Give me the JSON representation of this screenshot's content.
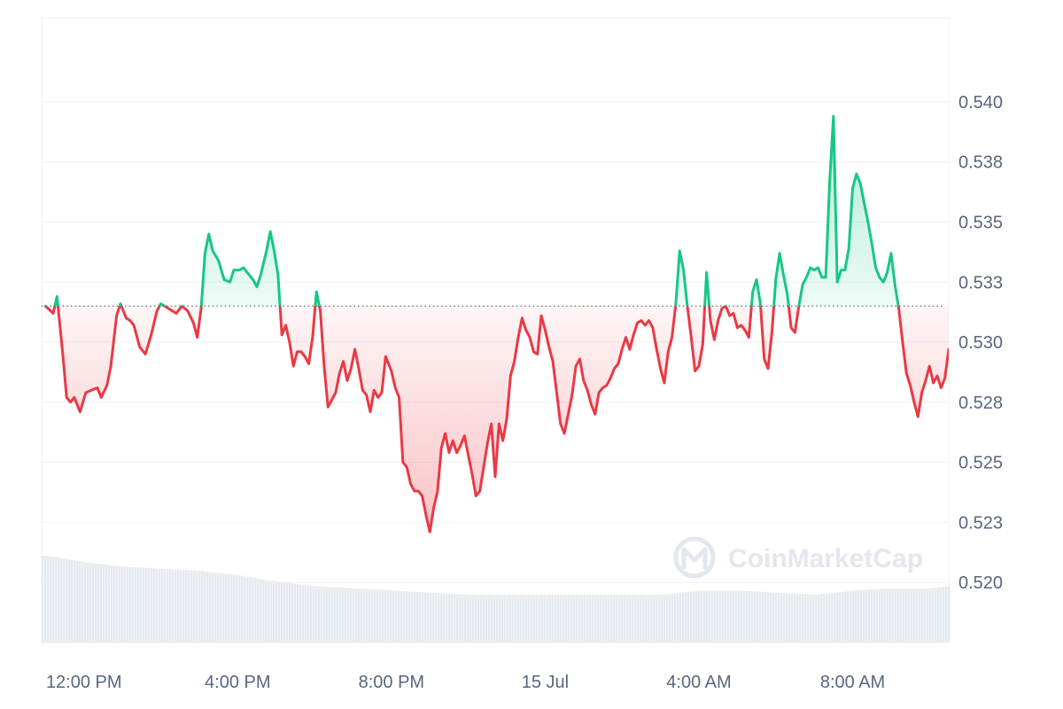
{
  "chart_data": {
    "type": "area",
    "baseline": 0.5315,
    "ylim": [
      0.5175,
      0.5435
    ],
    "xlim": [
      -0.1,
      23.5
    ],
    "y_ticks": [
      {
        "value": 0.52,
        "label": "0.520"
      },
      {
        "value": 0.5225,
        "label": "0.523"
      },
      {
        "value": 0.525,
        "label": "0.525"
      },
      {
        "value": 0.5275,
        "label": "0.528"
      },
      {
        "value": 0.53,
        "label": "0.530"
      },
      {
        "value": 0.5325,
        "label": "0.533"
      },
      {
        "value": 0.535,
        "label": "0.535"
      },
      {
        "value": 0.5375,
        "label": "0.538"
      },
      {
        "value": 0.54,
        "label": "0.540"
      }
    ],
    "x_ticks": [
      {
        "value": 1.0,
        "label": "12:00 PM"
      },
      {
        "value": 5.0,
        "label": "4:00 PM"
      },
      {
        "value": 9.0,
        "label": "8:00 PM"
      },
      {
        "value": 13.0,
        "label": "15 Jul"
      },
      {
        "value": 17.0,
        "label": "4:00 AM"
      },
      {
        "value": 21.0,
        "label": "8:00 AM"
      }
    ],
    "series": [
      {
        "values": [
          [
            0.0,
            0.5315
          ],
          [
            0.2,
            0.5312
          ],
          [
            0.3,
            0.5319
          ],
          [
            0.45,
            0.5295
          ],
          [
            0.55,
            0.5277
          ],
          [
            0.65,
            0.5275
          ],
          [
            0.75,
            0.5277
          ],
          [
            0.9,
            0.5271
          ],
          [
            1.05,
            0.5279
          ],
          [
            1.2,
            0.528
          ],
          [
            1.35,
            0.5281
          ],
          [
            1.45,
            0.5277
          ],
          [
            1.6,
            0.5282
          ],
          [
            1.7,
            0.529
          ],
          [
            1.85,
            0.5311
          ],
          [
            1.95,
            0.5316
          ],
          [
            2.1,
            0.531
          ],
          [
            2.2,
            0.5309
          ],
          [
            2.3,
            0.5307
          ],
          [
            2.45,
            0.5298
          ],
          [
            2.6,
            0.5295
          ],
          [
            2.75,
            0.5303
          ],
          [
            2.9,
            0.5313
          ],
          [
            3.0,
            0.5316
          ],
          [
            3.2,
            0.5314
          ],
          [
            3.4,
            0.5312
          ],
          [
            3.55,
            0.5315
          ],
          [
            3.7,
            0.5313
          ],
          [
            3.85,
            0.5308
          ],
          [
            3.95,
            0.5302
          ],
          [
            4.05,
            0.5314
          ],
          [
            4.15,
            0.5337
          ],
          [
            4.25,
            0.5345
          ],
          [
            4.35,
            0.5338
          ],
          [
            4.5,
            0.5334
          ],
          [
            4.65,
            0.5326
          ],
          [
            4.8,
            0.5325
          ],
          [
            4.9,
            0.533
          ],
          [
            5.05,
            0.533
          ],
          [
            5.15,
            0.5331
          ],
          [
            5.3,
            0.5328
          ],
          [
            5.4,
            0.5326
          ],
          [
            5.5,
            0.5323
          ],
          [
            5.6,
            0.5328
          ],
          [
            5.75,
            0.5338
          ],
          [
            5.85,
            0.5346
          ],
          [
            5.95,
            0.5338
          ],
          [
            6.05,
            0.5328
          ],
          [
            6.15,
            0.5303
          ],
          [
            6.25,
            0.5307
          ],
          [
            6.35,
            0.53
          ],
          [
            6.45,
            0.529
          ],
          [
            6.55,
            0.5296
          ],
          [
            6.65,
            0.5296
          ],
          [
            6.75,
            0.5294
          ],
          [
            6.85,
            0.5291
          ],
          [
            6.95,
            0.5302
          ],
          [
            7.05,
            0.5321
          ],
          [
            7.15,
            0.5313
          ],
          [
            7.25,
            0.529
          ],
          [
            7.35,
            0.5273
          ],
          [
            7.45,
            0.5276
          ],
          [
            7.55,
            0.5279
          ],
          [
            7.65,
            0.5287
          ],
          [
            7.75,
            0.5292
          ],
          [
            7.85,
            0.5284
          ],
          [
            7.95,
            0.5289
          ],
          [
            8.05,
            0.5297
          ],
          [
            8.15,
            0.5289
          ],
          [
            8.25,
            0.528
          ],
          [
            8.35,
            0.5278
          ],
          [
            8.45,
            0.5271
          ],
          [
            8.55,
            0.528
          ],
          [
            8.65,
            0.5277
          ],
          [
            8.75,
            0.5279
          ],
          [
            8.85,
            0.5294
          ],
          [
            9.0,
            0.5288
          ],
          [
            9.1,
            0.5281
          ],
          [
            9.2,
            0.5277
          ],
          [
            9.3,
            0.525
          ],
          [
            9.4,
            0.5248
          ],
          [
            9.5,
            0.5241
          ],
          [
            9.6,
            0.5238
          ],
          [
            9.7,
            0.5238
          ],
          [
            9.8,
            0.5236
          ],
          [
            9.9,
            0.5228
          ],
          [
            10.0,
            0.5221
          ],
          [
            10.1,
            0.5231
          ],
          [
            10.2,
            0.5238
          ],
          [
            10.3,
            0.5256
          ],
          [
            10.4,
            0.5262
          ],
          [
            10.5,
            0.5254
          ],
          [
            10.6,
            0.5259
          ],
          [
            10.7,
            0.5254
          ],
          [
            10.8,
            0.5257
          ],
          [
            10.9,
            0.5261
          ],
          [
            11.0,
            0.5253
          ],
          [
            11.1,
            0.5245
          ],
          [
            11.2,
            0.5236
          ],
          [
            11.3,
            0.5238
          ],
          [
            11.4,
            0.5248
          ],
          [
            11.5,
            0.5258
          ],
          [
            11.6,
            0.5266
          ],
          [
            11.7,
            0.5244
          ],
          [
            11.8,
            0.5266
          ],
          [
            11.9,
            0.5259
          ],
          [
            12.0,
            0.5268
          ],
          [
            12.1,
            0.5286
          ],
          [
            12.2,
            0.5292
          ],
          [
            12.3,
            0.5302
          ],
          [
            12.4,
            0.531
          ],
          [
            12.5,
            0.5305
          ],
          [
            12.6,
            0.5302
          ],
          [
            12.7,
            0.5296
          ],
          [
            12.8,
            0.5295
          ],
          [
            12.9,
            0.5311
          ],
          [
            13.0,
            0.5305
          ],
          [
            13.1,
            0.5298
          ],
          [
            13.2,
            0.5292
          ],
          [
            13.3,
            0.5279
          ],
          [
            13.4,
            0.5266
          ],
          [
            13.5,
            0.5262
          ],
          [
            13.6,
            0.527
          ],
          [
            13.7,
            0.5278
          ],
          [
            13.8,
            0.529
          ],
          [
            13.9,
            0.5293
          ],
          [
            14.0,
            0.5284
          ],
          [
            14.1,
            0.528
          ],
          [
            14.2,
            0.5274
          ],
          [
            14.3,
            0.527
          ],
          [
            14.4,
            0.5279
          ],
          [
            14.5,
            0.5281
          ],
          [
            14.6,
            0.5282
          ],
          [
            14.7,
            0.5285
          ],
          [
            14.8,
            0.5289
          ],
          [
            14.9,
            0.5291
          ],
          [
            15.0,
            0.5297
          ],
          [
            15.1,
            0.5302
          ],
          [
            15.2,
            0.5297
          ],
          [
            15.3,
            0.5303
          ],
          [
            15.4,
            0.5308
          ],
          [
            15.5,
            0.5309
          ],
          [
            15.6,
            0.5307
          ],
          [
            15.7,
            0.5309
          ],
          [
            15.8,
            0.5306
          ],
          [
            15.9,
            0.5297
          ],
          [
            16.0,
            0.5289
          ],
          [
            16.1,
            0.5283
          ],
          [
            16.2,
            0.5296
          ],
          [
            16.3,
            0.5302
          ],
          [
            16.4,
            0.5316
          ],
          [
            16.5,
            0.5338
          ],
          [
            16.6,
            0.533
          ],
          [
            16.7,
            0.5315
          ],
          [
            16.8,
            0.5302
          ],
          [
            16.9,
            0.5288
          ],
          [
            17.0,
            0.529
          ],
          [
            17.1,
            0.5299
          ],
          [
            17.2,
            0.5329
          ],
          [
            17.3,
            0.5309
          ],
          [
            17.4,
            0.5301
          ],
          [
            17.5,
            0.5309
          ],
          [
            17.6,
            0.5314
          ],
          [
            17.7,
            0.5315
          ],
          [
            17.8,
            0.5311
          ],
          [
            17.9,
            0.5312
          ],
          [
            18.0,
            0.5306
          ],
          [
            18.1,
            0.5307
          ],
          [
            18.2,
            0.5305
          ],
          [
            18.3,
            0.5302
          ],
          [
            18.4,
            0.5321
          ],
          [
            18.5,
            0.5326
          ],
          [
            18.6,
            0.5316
          ],
          [
            18.7,
            0.5293
          ],
          [
            18.8,
            0.5289
          ],
          [
            18.9,
            0.5304
          ],
          [
            19.0,
            0.5326
          ],
          [
            19.1,
            0.5337
          ],
          [
            19.2,
            0.5328
          ],
          [
            19.3,
            0.532
          ],
          [
            19.4,
            0.5306
          ],
          [
            19.5,
            0.5304
          ],
          [
            19.6,
            0.5315
          ],
          [
            19.7,
            0.5324
          ],
          [
            19.8,
            0.5327
          ],
          [
            19.9,
            0.5331
          ],
          [
            20.0,
            0.533
          ],
          [
            20.1,
            0.5331
          ],
          [
            20.2,
            0.5327
          ],
          [
            20.3,
            0.5327
          ],
          [
            20.4,
            0.5366
          ],
          [
            20.5,
            0.5394
          ],
          [
            20.6,
            0.5325
          ],
          [
            20.7,
            0.533
          ],
          [
            20.8,
            0.533
          ],
          [
            20.9,
            0.5339
          ],
          [
            21.0,
            0.5364
          ],
          [
            21.1,
            0.537
          ],
          [
            21.2,
            0.5366
          ],
          [
            21.3,
            0.5358
          ],
          [
            21.4,
            0.535
          ],
          [
            21.5,
            0.5341
          ],
          [
            21.6,
            0.5331
          ],
          [
            21.7,
            0.5327
          ],
          [
            21.8,
            0.5325
          ],
          [
            21.9,
            0.5329
          ],
          [
            22.0,
            0.5337
          ],
          [
            22.1,
            0.5324
          ],
          [
            22.2,
            0.5314
          ],
          [
            22.3,
            0.53
          ],
          [
            22.4,
            0.5287
          ],
          [
            22.5,
            0.5282
          ],
          [
            22.6,
            0.5275
          ],
          [
            22.7,
            0.5269
          ],
          [
            22.8,
            0.5279
          ],
          [
            22.9,
            0.5284
          ],
          [
            23.0,
            0.529
          ],
          [
            23.1,
            0.5283
          ],
          [
            23.2,
            0.5286
          ],
          [
            23.3,
            0.5281
          ],
          [
            23.4,
            0.5285
          ],
          [
            23.5,
            0.5297
          ]
        ]
      }
    ],
    "volume": [
      [
        0.0,
        0.4
      ],
      [
        1.0,
        0.37
      ],
      [
        2.0,
        0.35
      ],
      [
        3.0,
        0.34
      ],
      [
        4.0,
        0.33
      ],
      [
        5.0,
        0.31
      ],
      [
        6.0,
        0.28
      ],
      [
        7.0,
        0.26
      ],
      [
        8.0,
        0.25
      ],
      [
        9.0,
        0.24
      ],
      [
        10.0,
        0.23
      ],
      [
        11.0,
        0.22
      ],
      [
        12.0,
        0.22
      ],
      [
        13.0,
        0.22
      ],
      [
        14.0,
        0.22
      ],
      [
        15.0,
        0.22
      ],
      [
        16.0,
        0.22
      ],
      [
        17.0,
        0.24
      ],
      [
        18.0,
        0.24
      ],
      [
        19.0,
        0.23
      ],
      [
        20.0,
        0.22
      ],
      [
        21.0,
        0.24
      ],
      [
        22.0,
        0.25
      ],
      [
        23.0,
        0.25
      ],
      [
        23.5,
        0.26
      ]
    ],
    "colors": {
      "up": "#16c784",
      "down": "#ea3943",
      "up_fill": "#16c784",
      "down_fill": "#ea3943",
      "grid": "#eff2f5",
      "volume": "#e7ebf0",
      "baseline": "#606878",
      "tick_text": "#58667e",
      "watermark": "#e3e7ee"
    },
    "grid": true,
    "legend": "none"
  },
  "watermark": {
    "text": "CoinMarketCap",
    "logo_icon": "coinmarketcap-logo-icon"
  }
}
